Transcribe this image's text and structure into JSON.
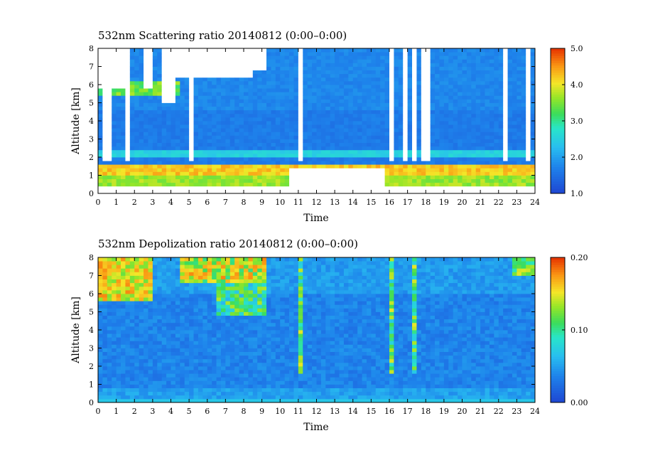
{
  "chart_data": [
    {
      "type": "heatmap",
      "title": "532nm Scattering ratio  20140812 (0:00–0:00)",
      "xlabel": "Time",
      "ylabel": "Altitude [km]",
      "xlim": [
        0,
        24
      ],
      "ylim": [
        0,
        8
      ],
      "x_ticks": [
        "0",
        "1",
        "2",
        "3",
        "4",
        "5",
        "6",
        "7",
        "8",
        "9",
        "10",
        "11",
        "12",
        "13",
        "14",
        "15",
        "16",
        "17",
        "18",
        "19",
        "20",
        "21",
        "22",
        "23",
        "24"
      ],
      "y_ticks": [
        "0",
        "1",
        "2",
        "3",
        "4",
        "5",
        "6",
        "7",
        "8"
      ],
      "colorbar": {
        "range": [
          1.0,
          5.0
        ],
        "ticks": [
          "1.0",
          "2.0",
          "3.0",
          "4.0",
          "5.0"
        ]
      },
      "colors": {
        "low": "#1e5ad2",
        "mid": "#2ee6c8",
        "high": "#e63c00",
        "missing": "#ffffff"
      }
    },
    {
      "type": "heatmap",
      "title": "532nm Depolization ratio  20140812 (0:00–0:00)",
      "xlabel": "Time",
      "ylabel": "Altitude [km]",
      "xlim": [
        0,
        24
      ],
      "ylim": [
        0,
        8
      ],
      "x_ticks": [
        "0",
        "1",
        "2",
        "3",
        "4",
        "5",
        "6",
        "7",
        "8",
        "9",
        "10",
        "11",
        "12",
        "13",
        "14",
        "15",
        "16",
        "17",
        "18",
        "19",
        "20",
        "21",
        "22",
        "23",
        "24"
      ],
      "y_ticks": [
        "0",
        "1",
        "2",
        "3",
        "4",
        "5",
        "6",
        "7",
        "8"
      ],
      "colorbar": {
        "range": [
          0.0,
          0.2
        ],
        "ticks": [
          "0.00",
          "0.10",
          "0.20"
        ]
      },
      "colors": {
        "low": "#1e5ad2",
        "mid": "#2ee6c8",
        "high": "#e63c00",
        "missing": "#ffffff"
      }
    }
  ]
}
